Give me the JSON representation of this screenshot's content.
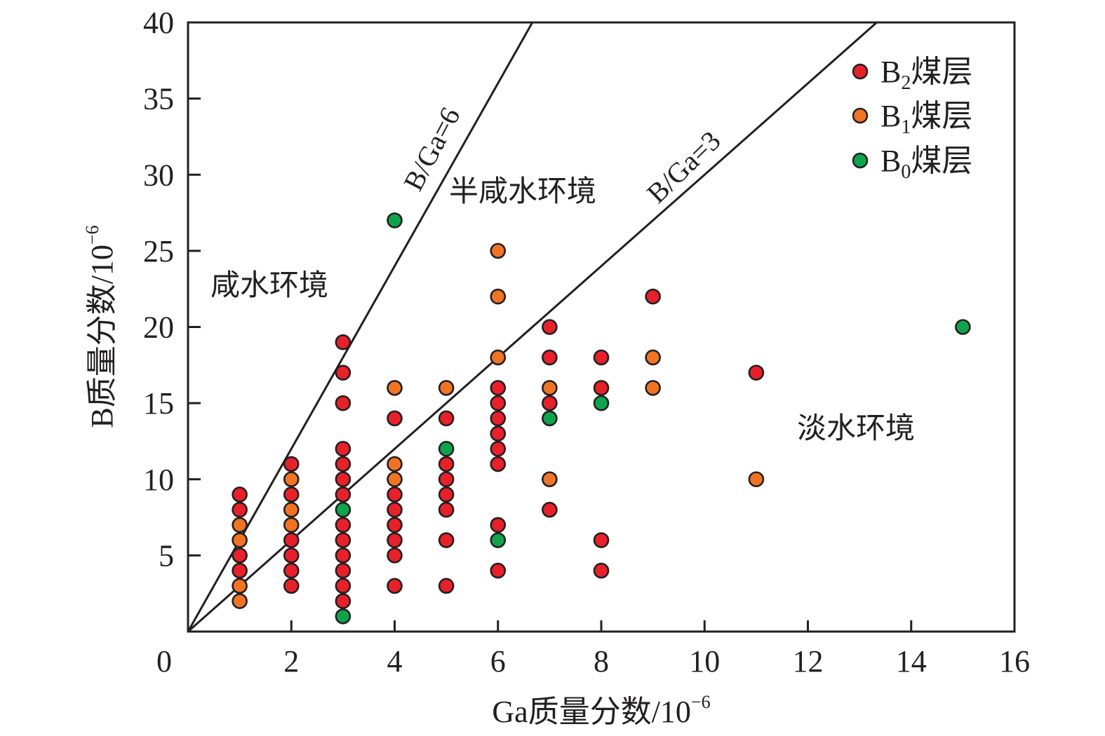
{
  "chart_data": {
    "type": "scatter",
    "title": "",
    "xlabel": "Ga质量分数/10",
    "xlabel_sup": "−6",
    "ylabel": "B质量分数/10",
    "ylabel_sup": "−6",
    "xlim": [
      0,
      16
    ],
    "ylim": [
      0,
      40
    ],
    "xticks": [
      2,
      4,
      6,
      8,
      10,
      12,
      14,
      16
    ],
    "yticks": [
      5,
      10,
      15,
      20,
      25,
      30,
      35,
      40
    ],
    "origin_label": "0",
    "grid": false,
    "legend_position": "top-right",
    "series": [
      {
        "name": "B2煤层",
        "legend_main": "B",
        "legend_sub": "2",
        "legend_suffix": "煤层",
        "color": "#e8202a",
        "points": [
          [
            1,
            9
          ],
          [
            1,
            8
          ],
          [
            1,
            5
          ],
          [
            1,
            4
          ],
          [
            2,
            11
          ],
          [
            2,
            9
          ],
          [
            2,
            6
          ],
          [
            2,
            5
          ],
          [
            2,
            4
          ],
          [
            2,
            3
          ],
          [
            3,
            19
          ],
          [
            3,
            17
          ],
          [
            3,
            15
          ],
          [
            3,
            12
          ],
          [
            3,
            11
          ],
          [
            3,
            10
          ],
          [
            3,
            9
          ],
          [
            3,
            7
          ],
          [
            3,
            6
          ],
          [
            3,
            5
          ],
          [
            3,
            4
          ],
          [
            3,
            3
          ],
          [
            3,
            2
          ],
          [
            4,
            14
          ],
          [
            4,
            9
          ],
          [
            4,
            8
          ],
          [
            4,
            7
          ],
          [
            4,
            6
          ],
          [
            4,
            5
          ],
          [
            4,
            3
          ],
          [
            5,
            14
          ],
          [
            5,
            11
          ],
          [
            5,
            10
          ],
          [
            5,
            9
          ],
          [
            5,
            8
          ],
          [
            5,
            6
          ],
          [
            5,
            3
          ],
          [
            6,
            16
          ],
          [
            6,
            15
          ],
          [
            6,
            14
          ],
          [
            6,
            13
          ],
          [
            6,
            12
          ],
          [
            6,
            11
          ],
          [
            6,
            7
          ],
          [
            6,
            4
          ],
          [
            7,
            20
          ],
          [
            7,
            18
          ],
          [
            7,
            15
          ],
          [
            7,
            8
          ],
          [
            8,
            18
          ],
          [
            8,
            16
          ],
          [
            8,
            6
          ],
          [
            8,
            4
          ],
          [
            9,
            22
          ],
          [
            11,
            17
          ]
        ]
      },
      {
        "name": "B1煤层",
        "legend_main": "B",
        "legend_sub": "1",
        "legend_suffix": "煤层",
        "color": "#f07424",
        "points": [
          [
            1,
            7
          ],
          [
            1,
            6
          ],
          [
            1,
            3
          ],
          [
            1,
            2
          ],
          [
            2,
            10
          ],
          [
            2,
            8
          ],
          [
            2,
            7
          ],
          [
            4,
            16
          ],
          [
            4,
            11
          ],
          [
            4,
            10
          ],
          [
            5,
            16
          ],
          [
            6,
            25
          ],
          [
            6,
            22
          ],
          [
            6,
            18
          ],
          [
            7,
            16
          ],
          [
            7,
            10
          ],
          [
            9,
            18
          ],
          [
            9,
            16
          ],
          [
            11,
            10
          ]
        ]
      },
      {
        "name": "B0煤层",
        "legend_main": "B",
        "legend_sub": "0",
        "legend_suffix": "煤层",
        "color": "#0ea44c",
        "points": [
          [
            3,
            8
          ],
          [
            3,
            1
          ],
          [
            4,
            27
          ],
          [
            5,
            12
          ],
          [
            6,
            6
          ],
          [
            7,
            14
          ],
          [
            8,
            15
          ],
          [
            15,
            20
          ]
        ]
      }
    ],
    "reference_lines": [
      {
        "name": "B/Ga=6",
        "slope": 6,
        "label": "B/Ga=6"
      },
      {
        "name": "B/Ga=3",
        "slope": 3,
        "label": "B/Ga=3"
      }
    ],
    "annotations": {
      "saline": "咸水环境",
      "brackish": "半咸水环境",
      "fresh": "淡水环境"
    }
  }
}
